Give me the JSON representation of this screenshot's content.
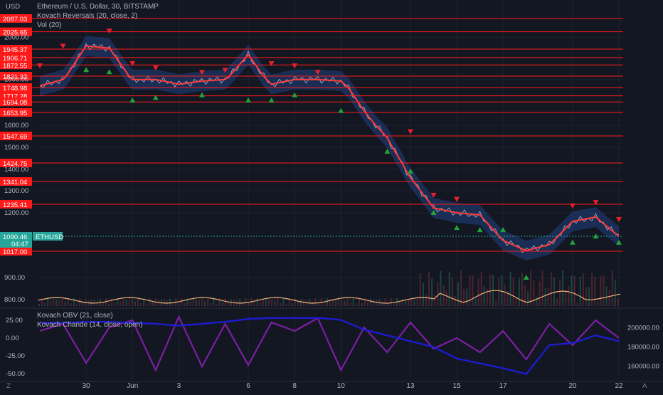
{
  "currency_label": "USD",
  "legend_main": [
    "Ethereum / U.S. Dollar, 30, BITSTAMP",
    "Kovach Reversals (20, close, 2)",
    "Vol (20)"
  ],
  "legend_lower": [
    "Kovach OBV (21, close)",
    "Kovach Chande (14, close, open)"
  ],
  "corner_left": "Z",
  "corner_right": "A",
  "colors": {
    "background": "#131722",
    "level_line": "#ff1a1a",
    "band": "#1e3566",
    "trend": "#ff3b3b",
    "up_marker": "#22a33a",
    "down_marker": "#e8202b",
    "volume_avg": "#f0b27a",
    "obv": "#1c1ccc",
    "chande": "#7b1fa2",
    "price_tag": "#26a69a"
  },
  "chart_data": [
    {
      "type": "line",
      "title": "Ethereum / U.S. Dollar, 30, BITSTAMP",
      "ylabel": "USD",
      "ylim": [
        760,
        2120
      ],
      "x_ticks": [
        "30",
        "Jun",
        "3",
        "6",
        "8",
        "10",
        "13",
        "15",
        "17",
        "20",
        "22"
      ],
      "y_ticks": [
        "2000.00",
        "1800.00",
        "1600.00",
        "1500.00",
        "1400.00",
        "1300.00",
        "1200.00",
        "900.00",
        "800.00"
      ],
      "levels": [
        2087.03,
        2025.65,
        1945.37,
        1906.71,
        1872.55,
        1821.32,
        1748.98,
        1717.28,
        1694.08,
        1653.95,
        1547.69,
        1424.75,
        1341.04,
        1235.41,
        1017.0
      ],
      "last_price": {
        "symbol": "ETHUSD",
        "value": "1090.46",
        "countdown": "04:47"
      },
      "series": [
        {
          "name": "Ethereum / U.S. Dollar",
          "x": [
            "May 28",
            "May 29",
            "May 30",
            "May 31",
            "Jun 1",
            "Jun 2",
            "Jun 3",
            "Jun 4",
            "Jun 5",
            "Jun 6",
            "Jun 7",
            "Jun 8",
            "Jun 9",
            "Jun 10",
            "Jun 11",
            "Jun 12",
            "Jun 13",
            "Jun 14",
            "Jun 15",
            "Jun 16",
            "Jun 17",
            "Jun 18",
            "Jun 19",
            "Jun 20",
            "Jun 21",
            "Jun 22"
          ],
          "values": [
            1760,
            1800,
            1960,
            1950,
            1800,
            1800,
            1770,
            1790,
            1800,
            1920,
            1770,
            1800,
            1800,
            1790,
            1660,
            1540,
            1360,
            1220,
            1200,
            1190,
            1070,
            1020,
            1050,
            1160,
            1180,
            1090
          ]
        }
      ]
    },
    {
      "type": "line",
      "title": "Kovach Chande (14, close, open)",
      "ylim": [
        -60,
        35
      ],
      "y_ticks": [
        "25.00",
        "0.00",
        "-25.00",
        "-50.00"
      ],
      "series": [
        {
          "name": "Kovach Chande",
          "values": [
            10,
            20,
            -35,
            15,
            25,
            -45,
            30,
            -40,
            20,
            -38,
            22,
            10,
            28,
            -45,
            15,
            -20,
            22,
            -15,
            0,
            -20,
            10,
            -30,
            20,
            -10,
            25,
            0
          ]
        }
      ]
    },
    {
      "type": "line",
      "title": "Kovach OBV (21, close)",
      "ylim": [
        145000,
        215000
      ],
      "y_ticks": [
        "200000.00",
        "180000.00",
        "160000.00"
      ],
      "series": [
        {
          "name": "Kovach OBV",
          "values": [
            205000,
            205000,
            206000,
            206000,
            205000,
            204000,
            202000,
            204000,
            206000,
            209000,
            210000,
            210000,
            210000,
            208000,
            198000,
            192000,
            186000,
            180000,
            168000,
            163000,
            158000,
            152000,
            182000,
            184000,
            192000,
            186000
          ]
        }
      ]
    }
  ],
  "markers": {
    "up": [
      [
        "May 30",
        1850
      ],
      [
        "May 31",
        1840
      ],
      [
        "Jun 1",
        1700
      ],
      [
        "Jun 2",
        1710
      ],
      [
        "Jun 4",
        1720
      ],
      [
        "Jun 6",
        1700
      ],
      [
        "Jun 7",
        1700
      ],
      [
        "Jun 8",
        1720
      ],
      [
        "Jun 10",
        1660
      ],
      [
        "Jun 12",
        1480
      ],
      [
        "Jun 13",
        1390
      ],
      [
        "Jun 14",
        1200
      ],
      [
        "Jun 15",
        1130
      ],
      [
        "Jun 16",
        1120
      ],
      [
        "Jun 17",
        1120
      ],
      [
        "Jun 18",
        900
      ],
      [
        "Jun 20",
        1060
      ],
      [
        "Jun 21",
        1090
      ],
      [
        "Jun 22",
        1060
      ]
    ],
    "down": [
      [
        "May 28",
        1870
      ],
      [
        "May 29",
        1960
      ],
      [
        "May 31",
        2030
      ],
      [
        "Jun 1",
        1880
      ],
      [
        "Jun 2",
        1860
      ],
      [
        "Jun 4",
        1840
      ],
      [
        "Jun 5",
        1850
      ],
      [
        "Jun 7",
        1880
      ],
      [
        "Jun 8",
        1870
      ],
      [
        "Jun 9",
        1840
      ],
      [
        "Jun 13",
        1570
      ],
      [
        "Jun 14",
        1280
      ],
      [
        "Jun 15",
        1260
      ],
      [
        "Jun 20",
        1230
      ],
      [
        "Jun 21",
        1245
      ],
      [
        "Jun 22",
        1170
      ]
    ]
  }
}
